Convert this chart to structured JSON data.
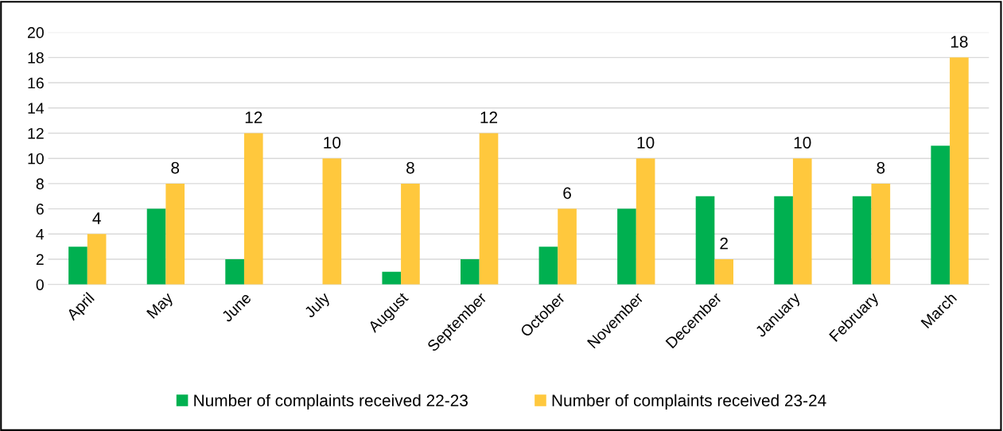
{
  "chart_data": {
    "type": "bar",
    "categories": [
      "April",
      "May",
      "June",
      "July",
      "August",
      "September",
      "October",
      "November",
      "December",
      "January",
      "February",
      "March"
    ],
    "series": [
      {
        "name": "Number of complaints received 22-23",
        "color": "#00b050",
        "values": [
          3,
          6,
          2,
          null,
          1,
          2,
          3,
          6,
          7,
          7,
          7,
          11
        ]
      },
      {
        "name": "Number of complaints received 23-24",
        "color": "#ffc83d",
        "values": [
          4,
          8,
          12,
          10,
          8,
          12,
          6,
          10,
          2,
          10,
          8,
          18
        ],
        "value_labels": [
          "4",
          "8",
          "12",
          "10",
          "8",
          "12",
          "6",
          "10",
          "2",
          "10",
          "8",
          "18"
        ]
      }
    ],
    "ylim": [
      0,
      20
    ],
    "yticks": [
      0,
      2,
      4,
      6,
      8,
      10,
      12,
      14,
      16,
      18,
      20
    ],
    "grid": "y",
    "legend": "bottom"
  }
}
